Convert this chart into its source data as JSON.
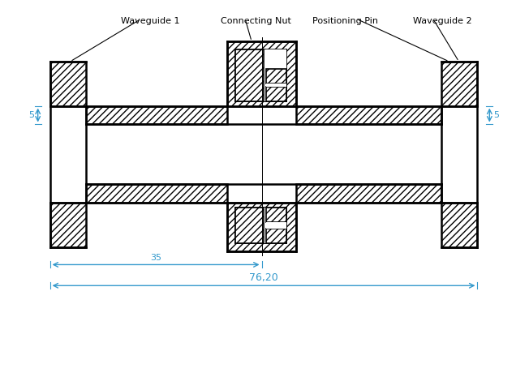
{
  "labels": {
    "waveguide1": "Waveguide 1",
    "connecting_nut": "Connecting Nut",
    "positioning_pin": "Positioning Pin",
    "waveguide2": "Waveguide 2"
  },
  "dimensions": {
    "dim1_label": "5",
    "dim2_label": "35",
    "dim3_label": "5",
    "dim4_label": "76,20"
  },
  "colors": {
    "line_color": "#000000",
    "dim_color": "#3399cc",
    "background": "#ffffff",
    "label_color": "#000000"
  },
  "figsize": [
    6.52,
    4.65
  ],
  "dpi": 100
}
